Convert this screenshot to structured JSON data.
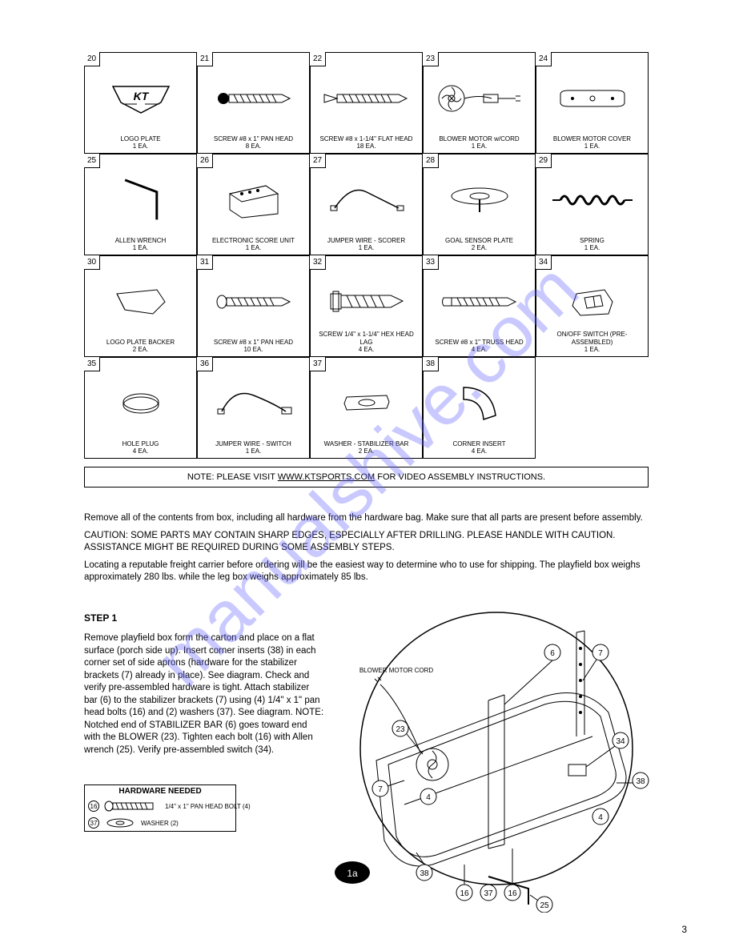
{
  "parts": {
    "cell_20": {
      "tag": "20",
      "label": "LOGO PLATE\\n1 EA."
    },
    "cell_21": {
      "tag": "21",
      "label": "SCREW #8 x 1\" PAN HEAD\\n8 EA."
    },
    "cell_22": {
      "tag": "22",
      "label": "SCREW #8 x 1-1/4\" FLAT HEAD\\n18 EA."
    },
    "cell_23": {
      "tag": "23",
      "label": "BLOWER MOTOR w/CORD\\n1 EA."
    },
    "cell_24": {
      "tag": "24",
      "label": "BLOWER MOTOR COVER\\n1 EA."
    },
    "cell_25": {
      "tag": "25",
      "label": "ALLEN WRENCH\\n1 EA."
    },
    "cell_26": {
      "tag": "26",
      "label": "ELECTRONIC SCORE UNIT\\n1 EA."
    },
    "cell_27": {
      "tag": "27",
      "label": "JUMPER WIRE - SCORER\\n1 EA."
    },
    "cell_28": {
      "tag": "28",
      "label": "GOAL SENSOR PLATE\\n2 EA."
    },
    "cell_29": {
      "tag": "29",
      "label": "SPRING\\n1 EA."
    },
    "cell_30": {
      "tag": "30",
      "label": "LOGO PLATE BACKER\\n2 EA."
    },
    "cell_31": {
      "tag": "31",
      "label": "SCREW #8 x 1\" PAN HEAD\\n10 EA."
    },
    "cell_32": {
      "tag": "32",
      "label": "SCREW 1/4\" x 1-1/4\" HEX HEAD LAG\\n4 EA."
    },
    "cell_33": {
      "tag": "33",
      "label": "SCREW #8 x 1\" TRUSS HEAD\\n4 EA."
    },
    "cell_34": {
      "tag": "34",
      "label": "ON/OFF SWITCH (PRE-ASSEMBLED)\\n1 EA."
    },
    "cell_35": {
      "tag": "35",
      "label": "HOLE PLUG\\n4 EA."
    },
    "cell_36": {
      "tag": "36",
      "label": "JUMPER WIRE - SWITCH\\n1 EA."
    },
    "cell_37": {
      "tag": "37",
      "label": "WASHER - STABILIZER BAR\\n2 EA."
    },
    "cell_38": {
      "tag": "38",
      "label": "CORNER INSERT\\n4 EA."
    }
  },
  "note": {
    "prefix": "NOTE: PLEASE VISIT ",
    "link": "WWW.KTSPORTS.COM",
    "suffix": " FOR VIDEO ASSEMBLY INSTRUCTIONS."
  },
  "intro": {
    "p1": "Remove all of the contents from box, including all hardware from the hardware bag. Make sure that all parts are present before assembly.",
    "p2": "CAUTION: SOME PARTS MAY CONTAIN SHARP EDGES, ESPECIALLY AFTER DRILLING. PLEASE HANDLE WITH CAUTION. ASSISTANCE MIGHT BE REQUIRED DURING SOME ASSEMBLY STEPS.",
    "p3": "Locating a reputable freight carrier before ordering will be the easiest way to determine who to use for shipping. The playfield box weighs approximately 280 lbs. while the leg box weighs approximately 85 lbs."
  },
  "step1": {
    "heading": "STEP 1",
    "body": "Remove playfield box form the carton and place on a flat surface (porch side up). Insert corner inserts (38) in each corner set of side aprons (hardware for the stabilizer brackets (7) already in place). See diagram. Check and verify pre-assembled hardware is tight. Attach stabilizer bar (6) to the stabilizer brackets (7) using (4) 1/4\" x 1\" pan head bolts (16) and (2) washers (37). See diagram. NOTE: Notched end of STABILIZER BAR (6) goes toward end with the BLOWER (23). Tighten each bolt (16) with Allen wrench (25). Verify pre-assembled switch (34)."
  },
  "hw_box": {
    "title": "HARDWARE NEEDED",
    "row1": {
      "id": "16",
      "label": "1/4\" x 1\" PAN HEAD BOLT (4)"
    },
    "row2": {
      "id": "37",
      "label": "WASHER (2)"
    }
  },
  "figure_callouts": {
    "c6": "6",
    "c7a": "7",
    "c7b": "7",
    "c23": "23",
    "c34": "34",
    "c4a": "4",
    "c4b": "4",
    "c38a": "38",
    "c38b": "38",
    "c25": "25",
    "c16a": "16",
    "c16b": "16",
    "c37": "37",
    "cord": "BLOWER MOTOR CORD",
    "oval": "1a"
  },
  "footer": {
    "page": "3",
    "docid": ""
  },
  "colors": {
    "stroke": "#000000",
    "bg": "#ffffff",
    "watermark": "rgba(100,100,255,0.35)"
  }
}
